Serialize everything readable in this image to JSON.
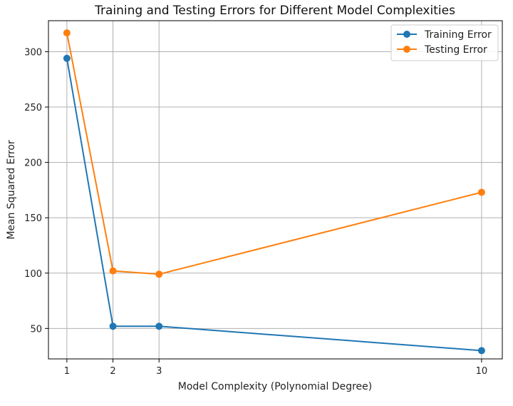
{
  "chart_data": {
    "type": "line",
    "title": "Training and Testing Errors for Different Model Complexities",
    "xlabel": "Model Complexity (Polynomial Degree)",
    "ylabel": "Mean Squared Error",
    "x": [
      1,
      2,
      3,
      10
    ],
    "xlim": [
      0.6,
      10.45
    ],
    "ylim": [
      22.5,
      328
    ],
    "xticks": [
      1,
      2,
      3,
      10
    ],
    "yticks": [
      50,
      100,
      150,
      200,
      250,
      300
    ],
    "grid": true,
    "legend_position": "top-right",
    "series": [
      {
        "name": "Training Error",
        "color": "#1f77b4",
        "marker": "circle",
        "values": [
          294,
          52,
          52,
          30
        ]
      },
      {
        "name": "Testing Error",
        "color": "#ff7f0e",
        "marker": "circle",
        "values": [
          317,
          102,
          99,
          173
        ]
      }
    ]
  }
}
